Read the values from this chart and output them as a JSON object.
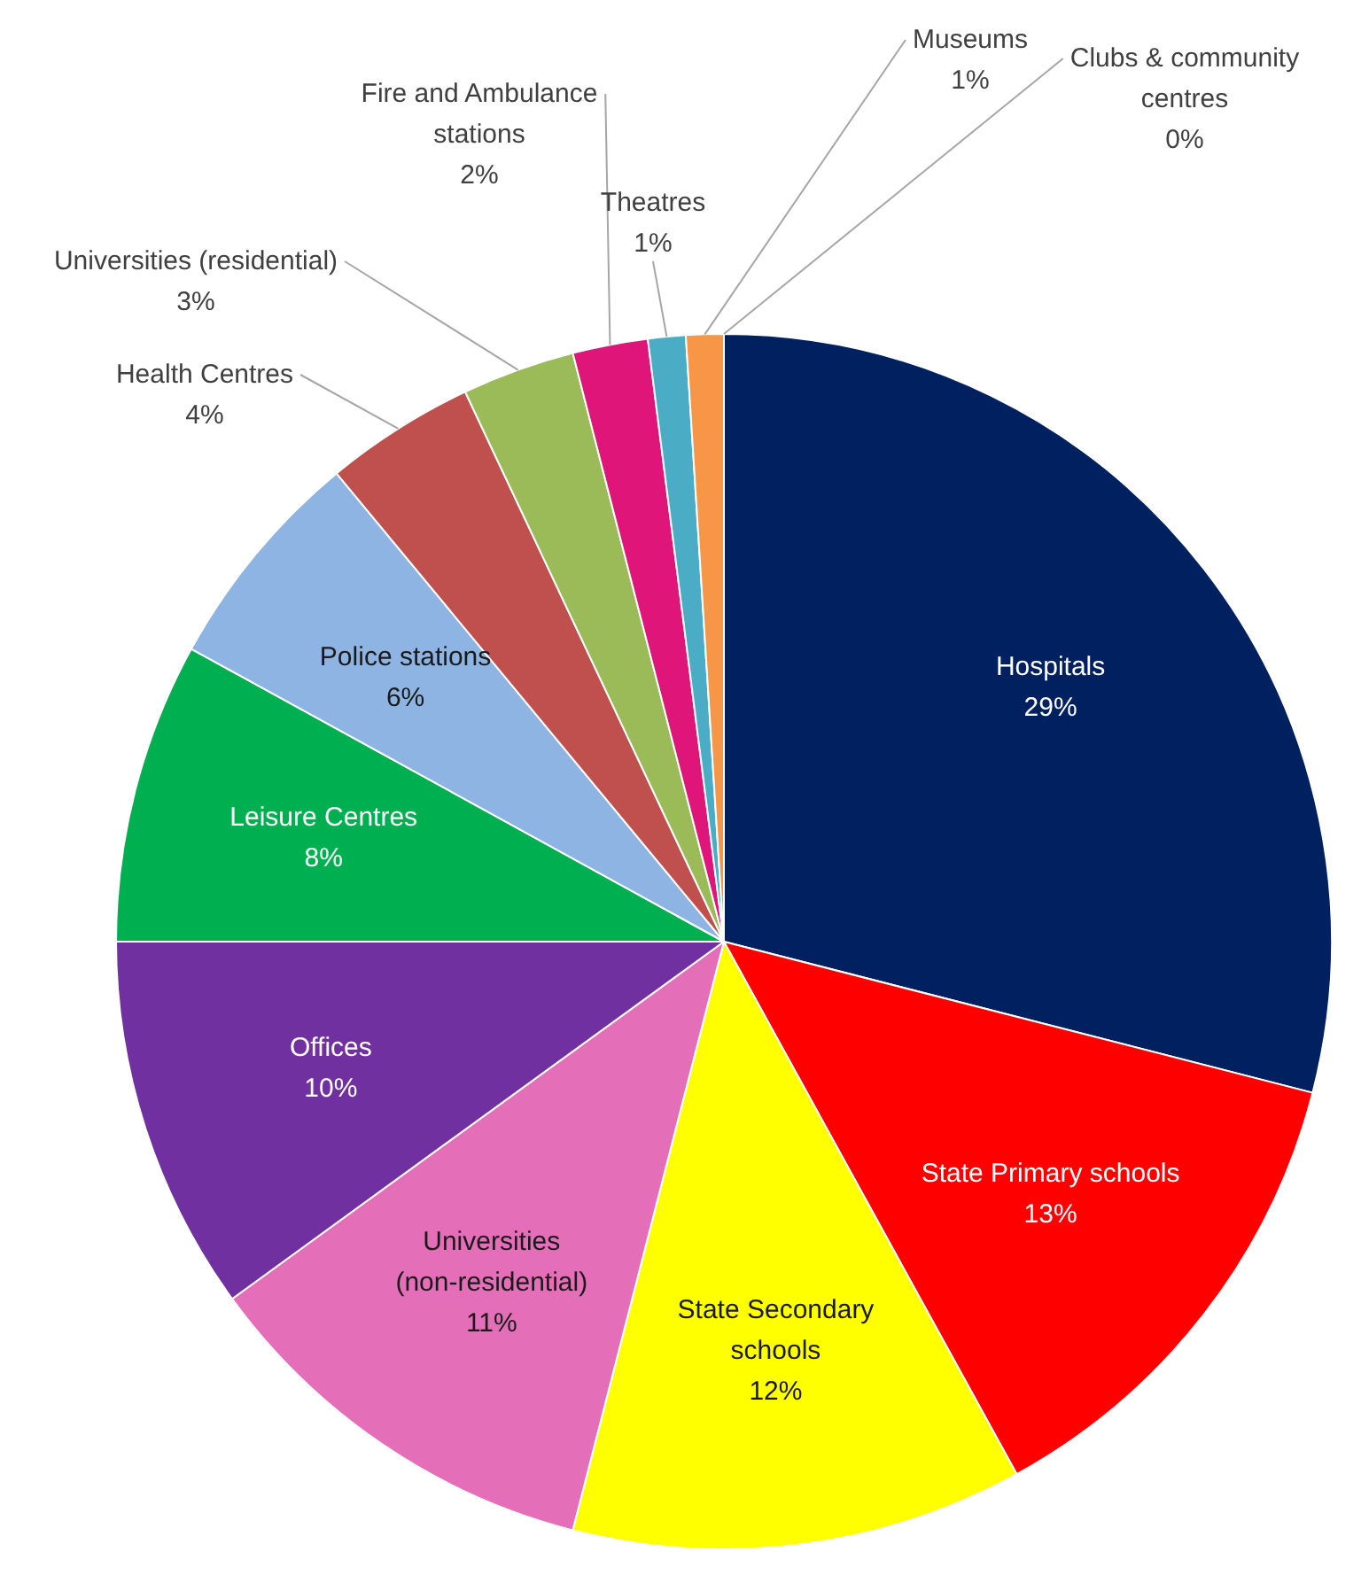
{
  "chart_data": {
    "type": "pie",
    "categories": [
      "Hospitals",
      "State Primary schools",
      "State Secondary schools",
      "Universities (non-residential)",
      "Offices",
      "Leisure Centres",
      "Police stations",
      "Health Centres",
      "Universities (residential)",
      "Fire and Ambulance stations",
      "Theatres",
      "Museums",
      "Clubs & community centres"
    ],
    "values": [
      29,
      13,
      12,
      11,
      10,
      8,
      6,
      4,
      3,
      2,
      1,
      1,
      0
    ],
    "colors": [
      "#002060",
      "#ff0000",
      "#ffff00",
      "#e46fb8",
      "#7030a0",
      "#00b050",
      "#8db4e2",
      "#c0504d",
      "#9bbb59",
      "#e0157a",
      "#4bacc6",
      "#f79646",
      "#92d050"
    ],
    "value_labels": [
      "29%",
      "13%",
      "12%",
      "11%",
      "10%",
      "8%",
      "6%",
      "4%",
      "3%",
      "2%",
      "1%",
      "1%",
      "0%"
    ],
    "legend": false
  }
}
